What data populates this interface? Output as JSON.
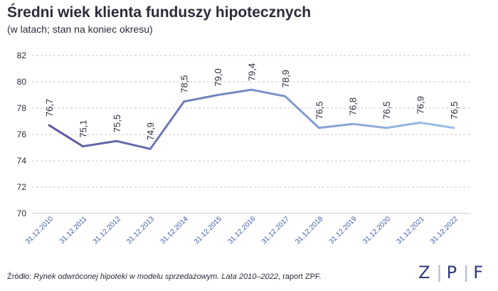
{
  "header": {
    "title": "Średni wiek klienta funduszy hipotecznych",
    "subtitle": "(w latach; stan na koniec okresu)"
  },
  "footer": {
    "source_prefix": "Źródło: ",
    "source_title": "Rynek odwróconej hipoteki w modelu sprzedażowym. Lata 2010–2022",
    "source_suffix": ", raport ZPF.",
    "logo": {
      "z": "Z",
      "p": "P",
      "f": "F",
      "sep": "|"
    }
  },
  "chart_data": {
    "type": "line",
    "categories": [
      "31.12.2010",
      "31.12.2011",
      "31.12.2012",
      "31.12.2013",
      "31.12.2014",
      "31.12.2015",
      "31.12.2016",
      "31.12.2017",
      "31.12.2018",
      "31.12.2019",
      "31.12.2020",
      "31.12.2021",
      "31.12.2022"
    ],
    "values": [
      76.7,
      75.1,
      75.5,
      74.9,
      78.5,
      79.0,
      79.4,
      78.9,
      76.5,
      76.8,
      76.5,
      76.9,
      76.5
    ],
    "data_labels": [
      "76,7",
      "75,1",
      "75,5",
      "74,9",
      "78,5",
      "79,0",
      "79,4",
      "78,9",
      "76,5",
      "76,8",
      "76,5",
      "76,9",
      "76,5"
    ],
    "ylim": [
      70,
      82
    ],
    "yticks": [
      70,
      72,
      74,
      76,
      78,
      80,
      82
    ],
    "grid": true,
    "colors": {
      "line_start": "#5b559a",
      "line_mid": "#7b8fc9",
      "line_end": "#9cc0e6",
      "grid": "#c9c9cf",
      "axis_text": "#2b2b3a",
      "label_text": "#2b2b3a",
      "xtick_text": "#3f5da8"
    }
  }
}
